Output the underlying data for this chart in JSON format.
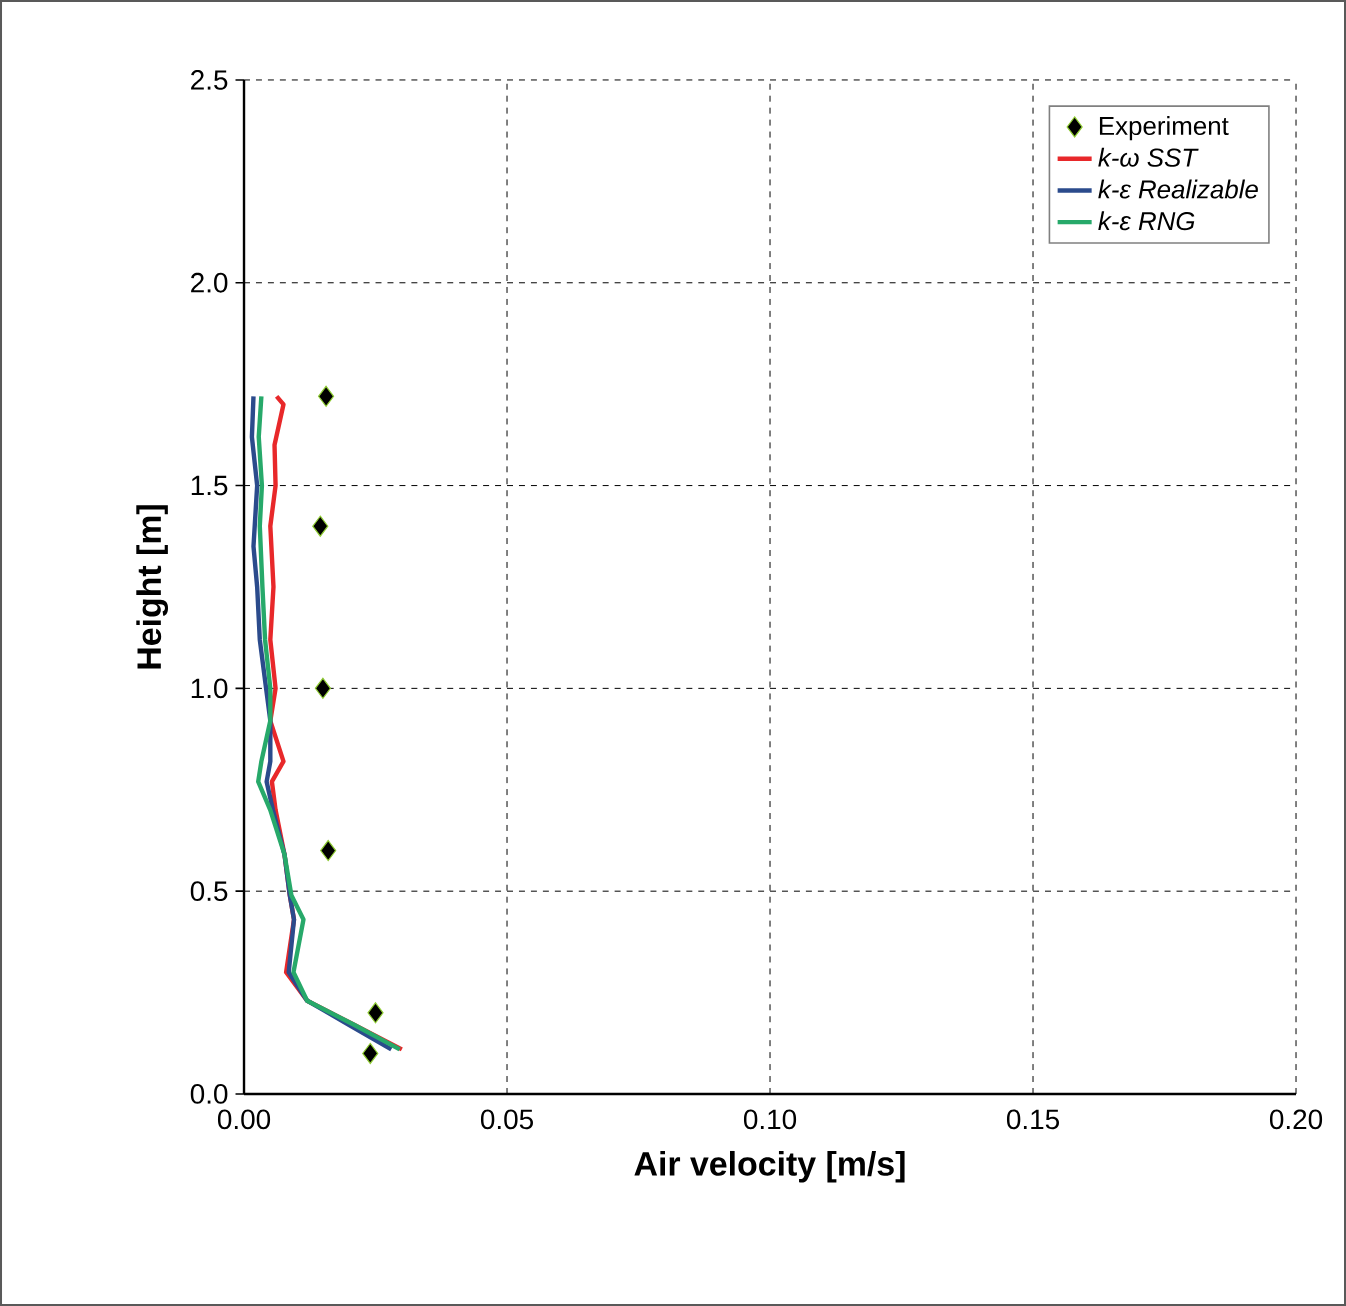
{
  "chart_data": {
    "type": "scatter",
    "xlabel": "Air velocity [m/s]",
    "ylabel": "Height [m]",
    "xlim": [
      0,
      0.2
    ],
    "ylim": [
      0,
      2.5
    ],
    "xticks": [
      {
        "value": 0,
        "label": "0.00"
      },
      {
        "value": 0.05,
        "label": "0.05"
      },
      {
        "value": 0.1,
        "label": "0.10"
      },
      {
        "value": 0.15,
        "label": "0.15"
      },
      {
        "value": 0.2,
        "label": "0.20"
      }
    ],
    "yticks": [
      {
        "value": 0,
        "label": "0.0"
      },
      {
        "value": 0.5,
        "label": "0.5"
      },
      {
        "value": 1.0,
        "label": "1.0"
      },
      {
        "value": 1.5,
        "label": "1.5"
      },
      {
        "value": 2.0,
        "label": "2.0"
      },
      {
        "value": 2.5,
        "label": "2.5"
      }
    ],
    "grid": true,
    "legend": "top right",
    "line_style": "solid",
    "series": [
      {
        "name": "Experiment",
        "marker": "diamond",
        "color": "#000000",
        "x": [
          0.0156,
          0.0145,
          0.015,
          0.016,
          0.025,
          0.024
        ],
        "values": [
          1.72,
          1.4,
          1.0,
          0.6,
          0.2,
          0.1
        ]
      },
      {
        "name": "*k-ω SST*",
        "type": "line",
        "color": "#e8282a",
        "x": [
          0.03,
          0.021,
          0.012,
          0.008,
          0.0095,
          0.0087,
          0.0077,
          0.006,
          0.0053,
          0.0075,
          0.005,
          0.006,
          0.005,
          0.0056,
          0.005,
          0.006,
          0.0058,
          0.0075,
          0.0062
        ],
        "values": [
          0.11,
          0.17,
          0.23,
          0.3,
          0.43,
          0.49,
          0.59,
          0.7,
          0.77,
          0.82,
          0.92,
          1.0,
          1.12,
          1.25,
          1.4,
          1.5,
          1.6,
          1.7,
          1.72
        ]
      },
      {
        "name": "*k-ε Realizable*",
        "type": "line",
        "color": "#2b4b8c",
        "x": [
          0.028,
          0.02,
          0.012,
          0.0085,
          0.0095,
          0.0087,
          0.0077,
          0.0055,
          0.0043,
          0.005,
          0.005,
          0.0042,
          0.003,
          0.0025,
          0.0018,
          0.0025,
          0.0015,
          0.0018
        ],
        "values": [
          0.11,
          0.17,
          0.23,
          0.3,
          0.43,
          0.49,
          0.59,
          0.7,
          0.77,
          0.82,
          0.92,
          1.0,
          1.12,
          1.25,
          1.35,
          1.5,
          1.62,
          1.72
        ]
      },
      {
        "name": "*k-ε RNG*",
        "type": "line",
        "color": "#27a96a",
        "x": [
          0.0296,
          0.021,
          0.012,
          0.0094,
          0.0113,
          0.009,
          0.0077,
          0.005,
          0.0027,
          0.0033,
          0.005,
          0.005,
          0.004,
          0.0035,
          0.003,
          0.0034,
          0.0028,
          0.0033
        ],
        "values": [
          0.11,
          0.17,
          0.23,
          0.3,
          0.43,
          0.49,
          0.59,
          0.7,
          0.77,
          0.82,
          0.92,
          1.0,
          1.12,
          1.25,
          1.4,
          1.5,
          1.62,
          1.72
        ]
      }
    ]
  }
}
